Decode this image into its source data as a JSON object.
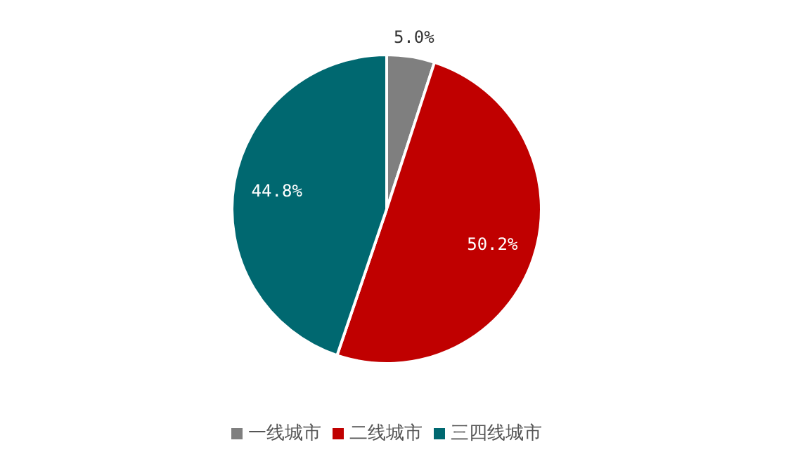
{
  "chart_data": {
    "type": "pie",
    "categories": [
      "一线城市",
      "二线城市",
      "三四线城市"
    ],
    "values": [
      5.0,
      50.2,
      44.8
    ],
    "colors": [
      "#7f7f7f",
      "#c00000",
      "#006870"
    ],
    "value_labels": [
      "5.0%",
      "50.2%",
      "44.8%"
    ],
    "legend": "bottom"
  }
}
